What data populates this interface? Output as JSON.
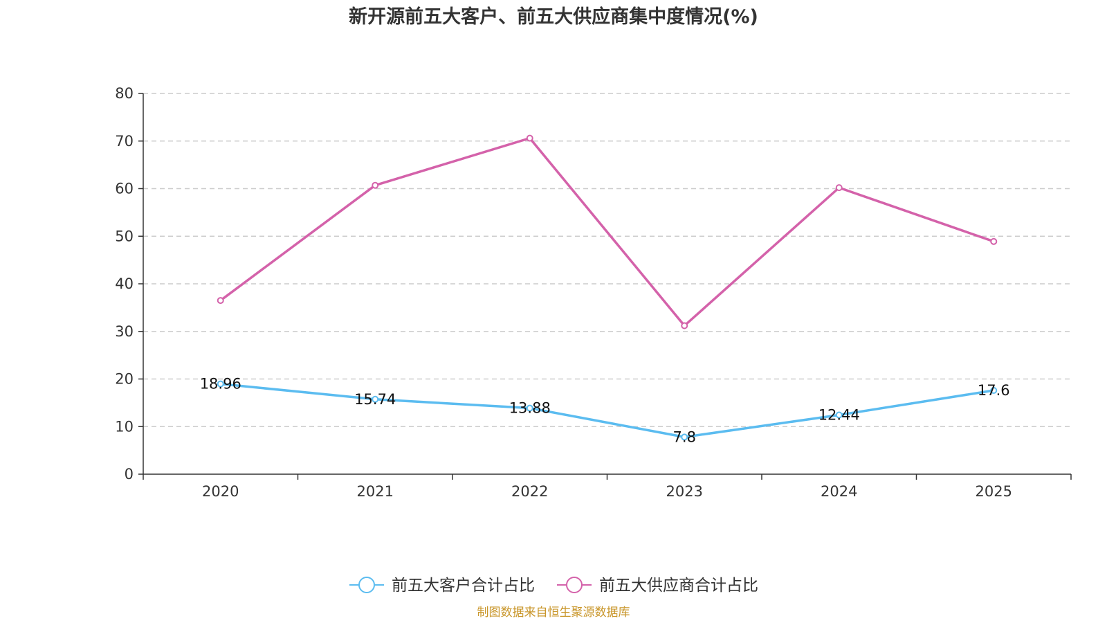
{
  "chart_data": {
    "type": "line",
    "title": "新开源前五大客户、前五大供应商集中度情况(%)",
    "categories": [
      "2020",
      "2021",
      "2022",
      "2023",
      "2024",
      "2025"
    ],
    "ylim": [
      0,
      80
    ],
    "yticks": [
      0,
      10,
      20,
      30,
      40,
      50,
      60,
      70,
      80
    ],
    "grid": true,
    "legend_position": "bottom",
    "series": [
      {
        "name": "前五大客户合计占比",
        "color": "#5bbcf0",
        "values": [
          18.96,
          15.74,
          13.88,
          7.8,
          12.44,
          17.6
        ],
        "show_labels": true
      },
      {
        "name": "前五大供应商合计占比",
        "color": "#d462aa",
        "values": [
          36.5,
          60.7,
          70.6,
          31.2,
          60.2,
          48.9
        ],
        "show_labels": false
      }
    ]
  },
  "source": "制图数据来自恒生聚源数据库"
}
